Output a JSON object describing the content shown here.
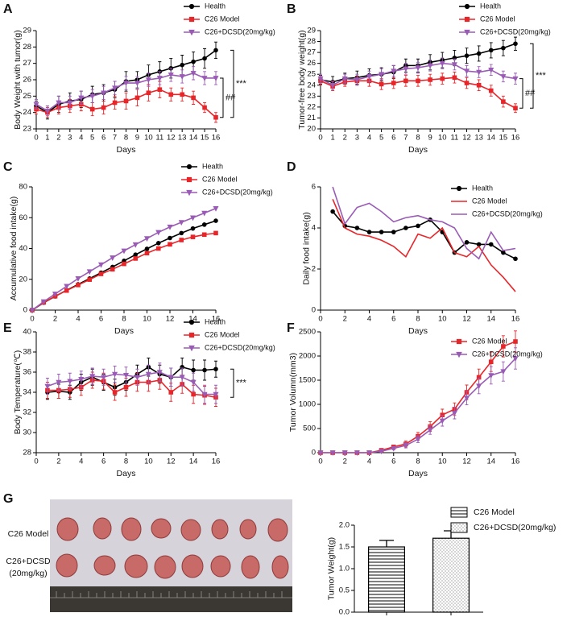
{
  "chart_data": [
    {
      "type": "line",
      "panel": "A",
      "ylabel": "Body Weight with tumor(g)",
      "xlabel": "Days",
      "x": [
        0,
        1,
        2,
        3,
        4,
        5,
        6,
        7,
        8,
        9,
        10,
        11,
        12,
        13,
        14,
        15,
        16
      ],
      "xlim": [
        0,
        16
      ],
      "xticks": [
        0,
        1,
        2,
        3,
        4,
        5,
        6,
        7,
        8,
        9,
        10,
        11,
        12,
        13,
        14,
        15,
        16
      ],
      "ylim": [
        23,
        29
      ],
      "yticks": [
        23,
        24,
        25,
        26,
        27,
        28,
        29
      ],
      "series": [
        {
          "name": "Health",
          "color": "#000000",
          "marker": "circle",
          "values": [
            24.4,
            24.0,
            24.5,
            24.7,
            24.8,
            25.1,
            25.2,
            25.4,
            25.9,
            26.0,
            26.3,
            26.5,
            26.7,
            26.9,
            27.1,
            27.3,
            27.8
          ],
          "errors": [
            0.3,
            0.4,
            0.5,
            0.5,
            0.5,
            0.5,
            0.5,
            0.5,
            0.6,
            0.5,
            0.6,
            0.6,
            0.6,
            0.6,
            0.6,
            0.6,
            0.5
          ]
        },
        {
          "name": "C26 Model",
          "color": "#e8262a",
          "marker": "square",
          "values": [
            24.2,
            24.0,
            24.3,
            24.4,
            24.5,
            24.2,
            24.3,
            24.6,
            24.7,
            24.9,
            25.2,
            25.4,
            25.1,
            25.1,
            24.9,
            24.3,
            23.7
          ],
          "errors": [
            0.3,
            0.3,
            0.4,
            0.4,
            0.4,
            0.4,
            0.4,
            0.4,
            0.5,
            0.5,
            0.5,
            0.5,
            0.4,
            0.4,
            0.4,
            0.3,
            0.3
          ]
        },
        {
          "name": "C26+DCSD(20mg/kg)",
          "color": "#9a5bb5",
          "marker": "triangle",
          "values": [
            24.5,
            24.1,
            24.6,
            24.6,
            24.9,
            25.0,
            25.2,
            25.5,
            25.8,
            25.8,
            26.0,
            26.1,
            26.3,
            26.2,
            26.4,
            26.1,
            26.1
          ],
          "errors": [
            0.3,
            0.3,
            0.4,
            0.4,
            0.4,
            0.4,
            0.4,
            0.4,
            0.4,
            0.4,
            0.4,
            0.4,
            0.4,
            0.4,
            0.4,
            0.4,
            0.4
          ]
        }
      ],
      "annotations": [
        "***",
        "##"
      ]
    },
    {
      "type": "line",
      "panel": "B",
      "ylabel": "Tumor-free body weight(g)",
      "xlabel": "Days",
      "x": [
        0,
        1,
        2,
        3,
        4,
        5,
        6,
        7,
        8,
        9,
        10,
        11,
        12,
        13,
        14,
        15,
        16
      ],
      "xlim": [
        0,
        16
      ],
      "xticks": [
        0,
        1,
        2,
        3,
        4,
        5,
        6,
        7,
        8,
        9,
        10,
        11,
        12,
        13,
        14,
        15,
        16
      ],
      "ylim": [
        20,
        29
      ],
      "yticks": [
        20,
        21,
        22,
        23,
        24,
        25,
        26,
        27,
        28,
        29
      ],
      "series": [
        {
          "name": "Health",
          "color": "#000000",
          "marker": "circle",
          "values": [
            24.5,
            24.3,
            24.6,
            24.7,
            24.9,
            25.0,
            25.2,
            25.8,
            25.8,
            26.1,
            26.3,
            26.5,
            26.7,
            26.9,
            27.2,
            27.4,
            27.8
          ],
          "errors": [
            0.4,
            0.5,
            0.5,
            0.6,
            0.6,
            0.6,
            0.6,
            0.6,
            0.6,
            0.7,
            0.7,
            0.7,
            0.7,
            0.7,
            0.7,
            0.7,
            0.6
          ]
        },
        {
          "name": "C26 Model",
          "color": "#e8262a",
          "marker": "square",
          "values": [
            24.4,
            23.9,
            24.3,
            24.4,
            24.4,
            24.1,
            24.2,
            24.4,
            24.4,
            24.5,
            24.6,
            24.7,
            24.2,
            24.0,
            23.5,
            22.5,
            21.9
          ],
          "errors": [
            0.4,
            0.4,
            0.4,
            0.4,
            0.5,
            0.5,
            0.5,
            0.5,
            0.5,
            0.5,
            0.5,
            0.5,
            0.5,
            0.5,
            0.5,
            0.5,
            0.4
          ]
        },
        {
          "name": "C26+DCSD(20mg/kg)",
          "color": "#9a5bb5",
          "marker": "triangle",
          "values": [
            24.6,
            24.0,
            24.6,
            24.5,
            24.8,
            25.0,
            25.3,
            25.5,
            25.6,
            25.8,
            26.0,
            25.9,
            25.3,
            25.2,
            25.4,
            24.8,
            24.6
          ],
          "errors": [
            0.4,
            0.4,
            0.4,
            0.5,
            0.5,
            0.5,
            0.5,
            0.5,
            0.5,
            0.5,
            0.5,
            0.5,
            0.5,
            0.5,
            0.5,
            0.5,
            0.5
          ]
        }
      ],
      "annotations": [
        "***",
        "##"
      ]
    },
    {
      "type": "line",
      "panel": "C",
      "ylabel": "Accumulative food intake(g)",
      "xlabel": "Days",
      "x": [
        0,
        1,
        2,
        3,
        4,
        5,
        6,
        7,
        8,
        9,
        10,
        11,
        12,
        13,
        14,
        15,
        16
      ],
      "xlim": [
        0,
        16
      ],
      "xticks": [
        0,
        2,
        4,
        6,
        8,
        10,
        12,
        14,
        16
      ],
      "ylim": [
        0,
        80
      ],
      "yticks": [
        0,
        20,
        40,
        60,
        80
      ],
      "series": [
        {
          "name": "Health",
          "color": "#000000",
          "marker": "circle",
          "values": [
            0,
            4.8,
            8.9,
            12.9,
            16.7,
            20.5,
            24.3,
            28.0,
            32.0,
            36.0,
            39.8,
            43.5,
            46.8,
            50.0,
            53.0,
            55.5,
            58
          ]
        },
        {
          "name": "C26 Model",
          "color": "#e8262a",
          "marker": "square",
          "values": [
            0,
            5.0,
            9.0,
            12.7,
            16.3,
            19.8,
            23.5,
            26.5,
            30.0,
            33.5,
            37.0,
            40.0,
            42.7,
            45.5,
            47.5,
            49.0,
            50
          ]
        },
        {
          "name": "C26+DCSD(20mg/kg)",
          "color": "#9a5bb5",
          "marker": "triangle",
          "values": [
            0,
            5.5,
            10.5,
            15.5,
            20.5,
            25,
            29.5,
            34,
            38.5,
            42.5,
            46.5,
            50.5,
            54,
            57,
            60,
            63,
            66
          ]
        }
      ]
    },
    {
      "type": "line",
      "panel": "D",
      "ylabel": "Daily food intake(g)",
      "xlabel": "Days",
      "x": [
        1,
        2,
        3,
        4,
        5,
        6,
        7,
        8,
        9,
        10,
        11,
        12,
        13,
        14,
        15,
        16
      ],
      "xlim": [
        0,
        16
      ],
      "xticks": [
        0,
        2,
        4,
        6,
        8,
        10,
        12,
        14,
        16
      ],
      "ylim": [
        0,
        6
      ],
      "yticks": [
        0,
        2,
        4,
        6
      ],
      "series": [
        {
          "name": "Health",
          "color": "#000000",
          "marker": "circle",
          "values": [
            4.8,
            4.1,
            4.0,
            3.8,
            3.8,
            3.8,
            4.0,
            4.1,
            4.4,
            3.8,
            2.8,
            3.3,
            3.2,
            3.2,
            2.8,
            2.5
          ]
        },
        {
          "name": "C26 Model",
          "color": "#e8262a",
          "marker": "none",
          "values": [
            5.4,
            4.0,
            3.7,
            3.6,
            3.4,
            3.1,
            2.6,
            3.7,
            3.5,
            4.0,
            2.8,
            2.6,
            3.1,
            2.2,
            1.6,
            0.9
          ]
        },
        {
          "name": "C26+DCSD(20mg/kg)",
          "color": "#9a5bb5",
          "marker": "none",
          "values": [
            6.0,
            4.2,
            5.0,
            5.2,
            4.8,
            4.3,
            4.5,
            4.6,
            4.4,
            4.3,
            4.0,
            3.0,
            2.5,
            3.8,
            2.9,
            3.0
          ]
        }
      ]
    },
    {
      "type": "line",
      "panel": "E",
      "ylabel": "Body Temperature(℃)",
      "xlabel": "Days",
      "x": [
        1,
        2,
        3,
        4,
        5,
        6,
        7,
        8,
        9,
        10,
        11,
        12,
        13,
        14,
        15,
        16
      ],
      "xlim": [
        0,
        16
      ],
      "xticks": [
        0,
        2,
        4,
        6,
        8,
        10,
        12,
        14,
        16
      ],
      "ylim": [
        28,
        40
      ],
      "yticks": [
        28,
        30,
        32,
        34,
        36,
        38,
        40
      ],
      "series": [
        {
          "name": "Health",
          "color": "#000000",
          "marker": "circle",
          "values": [
            34.0,
            34.1,
            34.0,
            35.0,
            35.5,
            35.0,
            34.5,
            35.0,
            35.8,
            36.5,
            35.8,
            35.5,
            36.5,
            36.2,
            36.2,
            36.3
          ],
          "errors": [
            0.7,
            0.7,
            0.7,
            0.8,
            0.8,
            0.8,
            0.8,
            0.8,
            0.9,
            0.9,
            0.9,
            0.9,
            0.9,
            1.0,
            1.0,
            0.8
          ]
        },
        {
          "name": "C26 Model",
          "color": "#e8262a",
          "marker": "square",
          "values": [
            34.2,
            34.2,
            34.3,
            34.5,
            35.2,
            35.1,
            34.0,
            34.5,
            35.0,
            35.0,
            35.2,
            34.0,
            34.8,
            33.8,
            33.7,
            33.5
          ],
          "errors": [
            0.8,
            0.8,
            0.8,
            0.8,
            0.8,
            0.8,
            0.8,
            0.9,
            0.9,
            0.9,
            0.9,
            0.9,
            0.9,
            0.9,
            0.9,
            0.9
          ]
        },
        {
          "name": "C26+DCSD(20mg/kg)",
          "color": "#9a5bb5",
          "marker": "triangle",
          "values": [
            34.6,
            35.0,
            35.1,
            35.3,
            35.6,
            35.5,
            35.8,
            35.7,
            35.5,
            35.8,
            36.0,
            35.5,
            35.5,
            35.0,
            33.8,
            33.8
          ],
          "errors": [
            0.8,
            0.8,
            0.8,
            0.8,
            0.8,
            0.8,
            0.8,
            0.8,
            0.8,
            0.9,
            0.9,
            0.9,
            0.9,
            0.9,
            0.9,
            0.9
          ]
        }
      ],
      "annotations": [
        "***"
      ]
    },
    {
      "type": "line",
      "panel": "F",
      "ylabel": "Tumor Volumn(mm3)",
      "xlabel": "Days",
      "x": [
        0,
        1,
        2,
        3,
        4,
        5,
        6,
        7,
        8,
        9,
        10,
        11,
        12,
        13,
        14,
        15,
        16
      ],
      "xlim": [
        0,
        16
      ],
      "xticks": [
        0,
        2,
        4,
        6,
        8,
        10,
        12,
        14,
        16
      ],
      "ylim": [
        0,
        2500
      ],
      "yticks": [
        0,
        500,
        1000,
        1500,
        2000,
        2500
      ],
      "series": [
        {
          "name": "C26 Model",
          "color": "#e8262a",
          "marker": "square",
          "values": [
            0,
            0,
            0,
            0,
            0,
            50,
            120,
            180,
            340,
            540,
            780,
            900,
            1250,
            1560,
            1880,
            2200,
            2300
          ],
          "errors": [
            0,
            0,
            0,
            0,
            0,
            20,
            40,
            60,
            80,
            100,
            120,
            130,
            150,
            170,
            200,
            220,
            220
          ]
        },
        {
          "name": "C26+DCSD(20mg/kg)",
          "color": "#9a5bb5",
          "marker": "triangle",
          "values": [
            0,
            0,
            0,
            0,
            0,
            30,
            90,
            150,
            280,
            470,
            660,
            820,
            1130,
            1380,
            1600,
            1680,
            1950
          ],
          "errors": [
            0,
            0,
            0,
            0,
            0,
            20,
            30,
            50,
            70,
            90,
            110,
            120,
            140,
            160,
            180,
            200,
            220
          ]
        }
      ]
    },
    {
      "type": "bar",
      "panel": "G",
      "ylabel": "Tumor Weight(g)",
      "categories": [
        "C26 Model",
        "C26+DCSD(20mg/kg)"
      ],
      "values": [
        1.5,
        1.7
      ],
      "errors": [
        0.15,
        0.17
      ],
      "patterns": [
        "horizontal-lines",
        "dots"
      ],
      "color": "#000000",
      "ylim": [
        0,
        2
      ],
      "yticks": [
        {
          "value": 0,
          "label": "0.0"
        },
        {
          "value": 0.5,
          "label": "0.5"
        },
        {
          "value": 1,
          "label": "1.0"
        },
        {
          "value": 1.5,
          "label": "1.5"
        },
        {
          "value": 2,
          "label": "2.0"
        }
      ]
    }
  ],
  "photo": {
    "row_labels": [
      "C26 Model",
      "C26+DCSD",
      "(20mg/kg)"
    ]
  }
}
